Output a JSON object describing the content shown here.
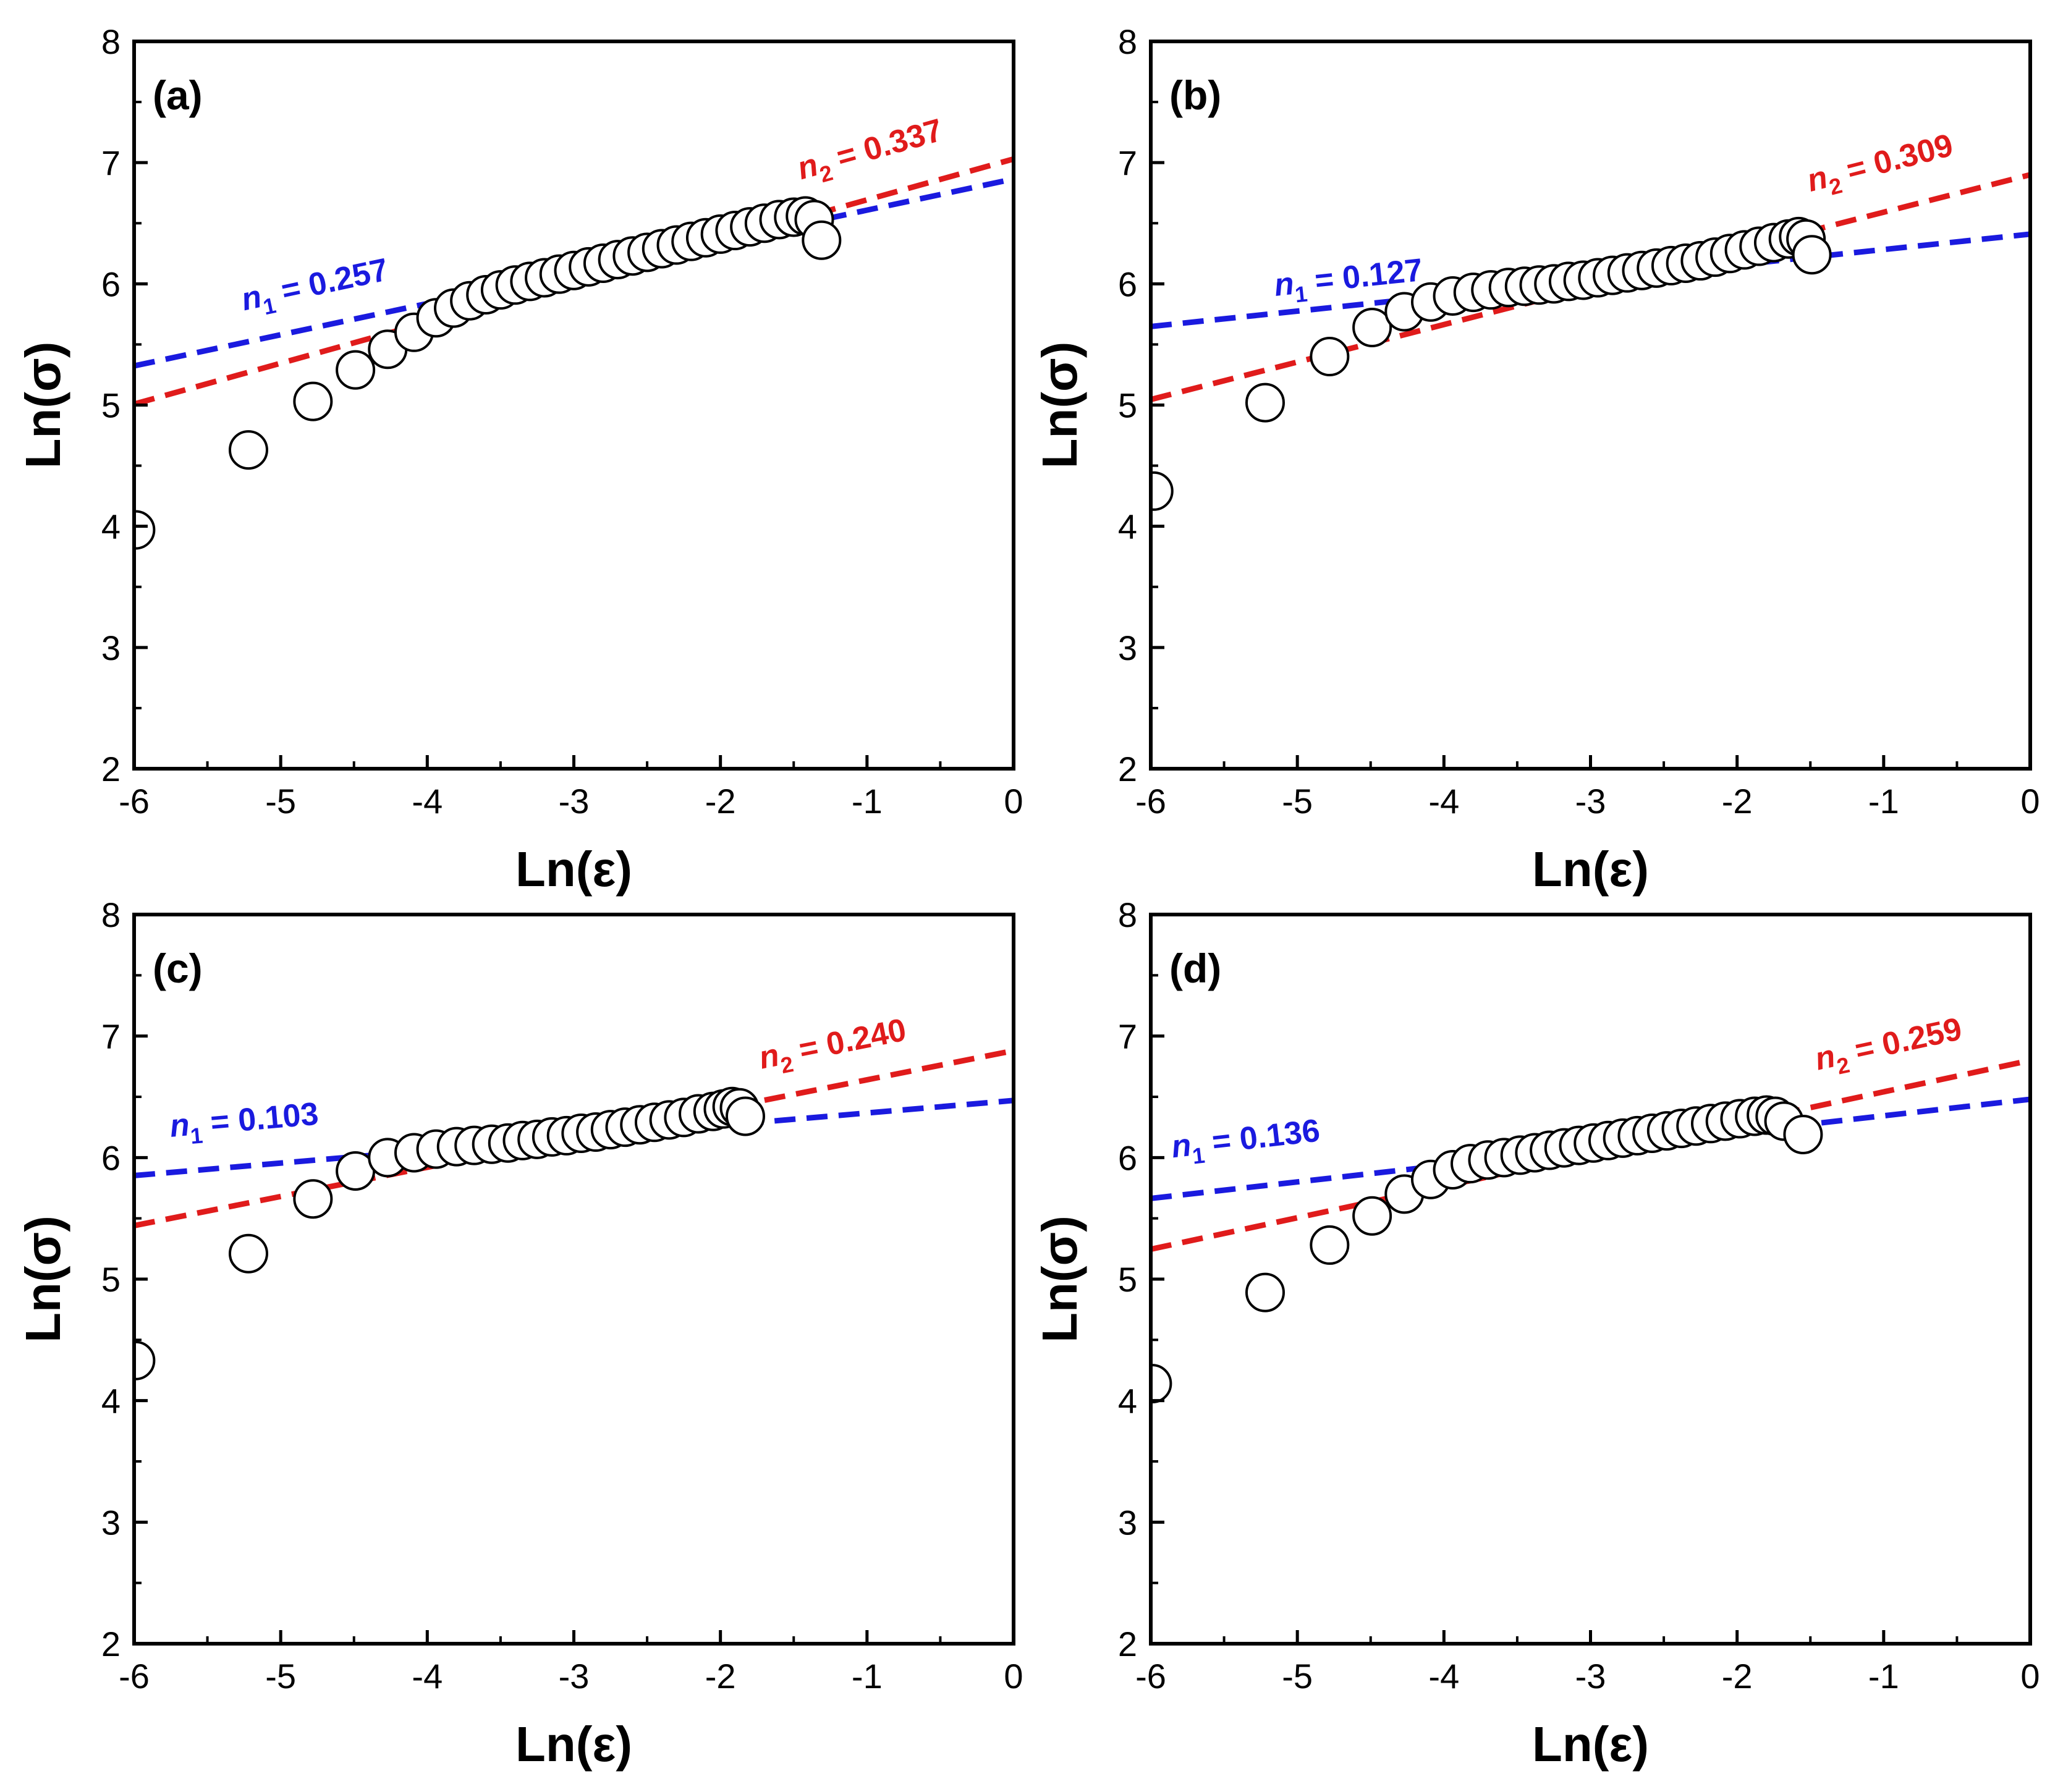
{
  "colors": {
    "axis": "#000000",
    "fit1": "#1a1adf",
    "fit2": "#e01b1b",
    "marker_fill": "#ffffff",
    "marker_stroke": "#000000"
  },
  "chart_data": [
    {
      "type": "scatter",
      "panel_label": "(a)",
      "xlabel": "Ln(ε)",
      "ylabel": "Ln(σ)",
      "xlim": [
        -6,
        0
      ],
      "ylim": [
        2,
        8
      ],
      "xticks": [
        "-6",
        "-5",
        "-4",
        "-3",
        "-2",
        "-1",
        "0"
      ],
      "yticks": [
        "2",
        "3",
        "4",
        "5",
        "6",
        "7",
        "8"
      ],
      "points": [
        [
          -5.99,
          3.97
        ],
        [
          -5.22,
          4.63
        ],
        [
          -4.78,
          5.03
        ],
        [
          -4.49,
          5.29
        ],
        [
          -4.27,
          5.46
        ],
        [
          -4.09,
          5.6
        ],
        [
          -3.94,
          5.72
        ],
        [
          -3.82,
          5.8
        ],
        [
          -3.71,
          5.86
        ],
        [
          -3.6,
          5.91
        ],
        [
          -3.5,
          5.95
        ],
        [
          -3.4,
          5.99
        ],
        [
          -3.3,
          6.02
        ],
        [
          -3.2,
          6.05
        ],
        [
          -3.1,
          6.08
        ],
        [
          -3.0,
          6.11
        ],
        [
          -2.9,
          6.14
        ],
        [
          -2.8,
          6.17
        ],
        [
          -2.7,
          6.2
        ],
        [
          -2.6,
          6.23
        ],
        [
          -2.5,
          6.26
        ],
        [
          -2.4,
          6.29
        ],
        [
          -2.3,
          6.32
        ],
        [
          -2.2,
          6.35
        ],
        [
          -2.1,
          6.38
        ],
        [
          -2.0,
          6.41
        ],
        [
          -1.9,
          6.44
        ],
        [
          -1.8,
          6.47
        ],
        [
          -1.7,
          6.5
        ],
        [
          -1.6,
          6.53
        ],
        [
          -1.5,
          6.55
        ],
        [
          -1.42,
          6.56
        ],
        [
          -1.36,
          6.53
        ],
        [
          -1.31,
          6.36
        ]
      ],
      "series": [
        {
          "name": "n₁ = 0.257",
          "label_main": "n",
          "label_sub": "1",
          "label_value": " = 0.257",
          "slope": 0.257,
          "intercept": 6.865,
          "label_at": [
            -5.25,
            5.78
          ],
          "label_angle_data": 0.257
        },
        {
          "name": "n₂ = 0.337",
          "label_main": "n",
          "label_sub": "2",
          "label_value": " = 0.337",
          "slope": 0.337,
          "intercept": 7.03,
          "label_at": [
            -1.45,
            6.86
          ],
          "label_angle_data": 0.337
        }
      ]
    },
    {
      "type": "scatter",
      "panel_label": "(b)",
      "xlabel": "Ln(ε)",
      "ylabel": "Ln(σ)",
      "xlim": [
        -6,
        0
      ],
      "ylim": [
        2,
        8
      ],
      "xticks": [
        "-6",
        "-5",
        "-4",
        "-3",
        "-2",
        "-1",
        "0"
      ],
      "yticks": [
        "2",
        "3",
        "4",
        "5",
        "6",
        "7",
        "8"
      ],
      "points": [
        [
          -5.98,
          4.29
        ],
        [
          -5.22,
          5.02
        ],
        [
          -4.78,
          5.4
        ],
        [
          -4.49,
          5.64
        ],
        [
          -4.27,
          5.77
        ],
        [
          -4.09,
          5.85
        ],
        [
          -3.94,
          5.9
        ],
        [
          -3.8,
          5.93
        ],
        [
          -3.68,
          5.95
        ],
        [
          -3.56,
          5.97
        ],
        [
          -3.45,
          5.98
        ],
        [
          -3.35,
          5.99
        ],
        [
          -3.25,
          6.0
        ],
        [
          -3.15,
          6.02
        ],
        [
          -3.05,
          6.03
        ],
        [
          -2.95,
          6.05
        ],
        [
          -2.85,
          6.07
        ],
        [
          -2.75,
          6.09
        ],
        [
          -2.65,
          6.11
        ],
        [
          -2.55,
          6.13
        ],
        [
          -2.45,
          6.15
        ],
        [
          -2.35,
          6.17
        ],
        [
          -2.25,
          6.19
        ],
        [
          -2.15,
          6.22
        ],
        [
          -2.05,
          6.25
        ],
        [
          -1.95,
          6.28
        ],
        [
          -1.85,
          6.31
        ],
        [
          -1.75,
          6.34
        ],
        [
          -1.65,
          6.37
        ],
        [
          -1.58,
          6.39
        ],
        [
          -1.53,
          6.37
        ],
        [
          -1.49,
          6.24
        ]
      ],
      "series": [
        {
          "name": "n₁ = 0.127",
          "label_main": "n",
          "label_sub": "1",
          "label_value": " = 0.127",
          "slope": 0.127,
          "intercept": 6.41,
          "label_at": [
            -5.15,
            5.9
          ],
          "label_angle_data": 0.127
        },
        {
          "name": "n₂ = 0.309",
          "label_main": "n",
          "label_sub": "2",
          "label_value": " = 0.309",
          "slope": 0.309,
          "intercept": 6.9,
          "label_at": [
            -1.5,
            6.76
          ],
          "label_angle_data": 0.309
        }
      ]
    },
    {
      "type": "scatter",
      "panel_label": "(c)",
      "xlabel": "Ln(ε)",
      "ylabel": "Ln(σ)",
      "xlim": [
        -6,
        0
      ],
      "ylim": [
        2,
        8
      ],
      "xticks": [
        "-6",
        "-5",
        "-4",
        "-3",
        "-2",
        "-1",
        "0"
      ],
      "yticks": [
        "2",
        "3",
        "4",
        "5",
        "6",
        "7",
        "8"
      ],
      "points": [
        [
          -5.99,
          4.33
        ],
        [
          -5.22,
          5.21
        ],
        [
          -4.78,
          5.66
        ],
        [
          -4.49,
          5.89
        ],
        [
          -4.27,
          6.0
        ],
        [
          -4.09,
          6.04
        ],
        [
          -3.94,
          6.07
        ],
        [
          -3.8,
          6.09
        ],
        [
          -3.68,
          6.1
        ],
        [
          -3.56,
          6.11
        ],
        [
          -3.45,
          6.12
        ],
        [
          -3.35,
          6.14
        ],
        [
          -3.25,
          6.15
        ],
        [
          -3.15,
          6.17
        ],
        [
          -3.05,
          6.18
        ],
        [
          -2.95,
          6.2
        ],
        [
          -2.85,
          6.21
        ],
        [
          -2.75,
          6.23
        ],
        [
          -2.65,
          6.25
        ],
        [
          -2.55,
          6.27
        ],
        [
          -2.45,
          6.29
        ],
        [
          -2.35,
          6.31
        ],
        [
          -2.25,
          6.33
        ],
        [
          -2.15,
          6.36
        ],
        [
          -2.05,
          6.38
        ],
        [
          -1.98,
          6.4
        ],
        [
          -1.92,
          6.42
        ],
        [
          -1.87,
          6.41
        ],
        [
          -1.83,
          6.34
        ]
      ],
      "series": [
        {
          "name": "n₁ = 0.103",
          "label_main": "n",
          "label_sub": "1",
          "label_value": " = 0.103",
          "slope": 0.103,
          "intercept": 6.47,
          "label_at": [
            -5.75,
            6.17
          ],
          "label_angle_data": 0.103
        },
        {
          "name": "n₂ = 0.240",
          "label_main": "n",
          "label_sub": "2",
          "label_value": " = 0.240",
          "slope": 0.24,
          "intercept": 6.88,
          "label_at": [
            -1.72,
            6.73
          ],
          "label_angle_data": 0.24
        }
      ]
    },
    {
      "type": "scatter",
      "panel_label": "(d)",
      "xlabel": "Ln(ε)",
      "ylabel": "Ln(σ)",
      "xlim": [
        -6,
        0
      ],
      "ylim": [
        2,
        8
      ],
      "xticks": [
        "-6",
        "-5",
        "-4",
        "-3",
        "-2",
        "-1",
        "0"
      ],
      "yticks": [
        "2",
        "3",
        "4",
        "5",
        "6",
        "7",
        "8"
      ],
      "points": [
        [
          -5.99,
          4.14
        ],
        [
          -5.22,
          4.89
        ],
        [
          -4.78,
          5.28
        ],
        [
          -4.49,
          5.52
        ],
        [
          -4.27,
          5.7
        ],
        [
          -4.09,
          5.82
        ],
        [
          -3.94,
          5.9
        ],
        [
          -3.82,
          5.95
        ],
        [
          -3.7,
          5.98
        ],
        [
          -3.59,
          6.0
        ],
        [
          -3.48,
          6.02
        ],
        [
          -3.38,
          6.04
        ],
        [
          -3.28,
          6.06
        ],
        [
          -3.18,
          6.08
        ],
        [
          -3.08,
          6.1
        ],
        [
          -2.98,
          6.12
        ],
        [
          -2.88,
          6.14
        ],
        [
          -2.78,
          6.16
        ],
        [
          -2.68,
          6.18
        ],
        [
          -2.58,
          6.2
        ],
        [
          -2.48,
          6.22
        ],
        [
          -2.38,
          6.24
        ],
        [
          -2.28,
          6.26
        ],
        [
          -2.18,
          6.28
        ],
        [
          -2.08,
          6.3
        ],
        [
          -1.98,
          6.32
        ],
        [
          -1.88,
          6.34
        ],
        [
          -1.8,
          6.35
        ],
        [
          -1.74,
          6.34
        ],
        [
          -1.68,
          6.3
        ],
        [
          -1.55,
          6.19
        ]
      ],
      "series": [
        {
          "name": "n₁ = 0.136",
          "label_main": "n",
          "label_sub": "1",
          "label_value": " = 0.136",
          "slope": 0.136,
          "intercept": 6.48,
          "label_at": [
            -5.85,
            6.0
          ],
          "label_angle_data": 0.136
        },
        {
          "name": "n₂ = 0.259",
          "label_main": "n",
          "label_sub": "2",
          "label_value": " = 0.259",
          "slope": 0.259,
          "intercept": 6.8,
          "label_at": [
            -1.45,
            6.72
          ],
          "label_angle_data": 0.259
        }
      ]
    }
  ]
}
